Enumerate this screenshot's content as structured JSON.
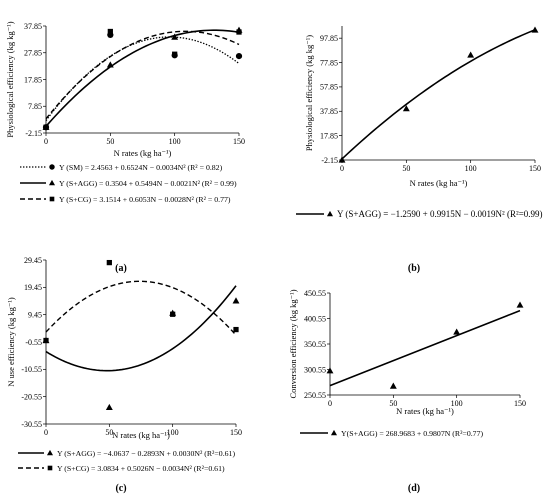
{
  "chart_data": [
    {
      "type": "scatter",
      "panel_label": "(a)",
      "xlabel": "N rates (kg ha⁻¹)",
      "ylabel": "Physiological efficiency (kg kg⁻¹)",
      "xlim": [
        0,
        150
      ],
      "ylim": [
        -2.15,
        37.85
      ],
      "xticks": [
        0,
        50,
        100,
        150
      ],
      "yticks": [
        -2.15,
        7.85,
        17.85,
        27.85,
        37.85
      ],
      "grid": false,
      "legend_position": "bottom",
      "series": [
        {
          "name": "Y (SM)",
          "marker": "circle",
          "line": "dotted",
          "equation": "Y (SM) = 2.4563 + 0.6524N − 0.0034N²  (R² = 0.82)",
          "coef": [
            2.4563,
            0.6524,
            -0.0034
          ],
          "x": [
            0,
            50,
            100,
            150
          ],
          "y": [
            0,
            34.5,
            26.9,
            26.6
          ]
        },
        {
          "name": "Y (S+AGG)",
          "marker": "triangle",
          "line": "solid",
          "equation": "Y (S+AGG) = 0.3504 + 0.5494N − 0.0021N²  (R² = 0.99)",
          "coef": [
            0.3504,
            0.5494,
            -0.0021
          ],
          "x": [
            0,
            50,
            100,
            150
          ],
          "y": [
            0,
            23.3,
            33.7,
            36.3
          ]
        },
        {
          "name": "Y (S+CG)",
          "marker": "square",
          "line": "dashed",
          "equation": "Y (S+CG) = 3.1514 + 0.6053N − 0.0028N²  (R² = 0.77)",
          "coef": [
            3.1514,
            0.6053,
            -0.0028
          ],
          "x": [
            0,
            50,
            100,
            150
          ],
          "y": [
            0,
            35.8,
            27.3,
            35.6
          ]
        }
      ]
    },
    {
      "type": "scatter",
      "panel_label": "(b)",
      "xlabel": "N rates (kg ha⁻¹)",
      "ylabel": "Physiological efficiency (kg kg⁻¹)",
      "xlim": [
        0,
        150
      ],
      "ylim": [
        -2.15,
        107.85
      ],
      "xticks": [
        0,
        50,
        100,
        150
      ],
      "yticks": [
        -2.15,
        17.85,
        37.85,
        57.85,
        77.85,
        97.85
      ],
      "grid": false,
      "legend_position": "bottom",
      "series": [
        {
          "name": "Y (S+AGG)",
          "marker": "triangle",
          "line": "solid",
          "equation": "Y (S+AGG) = −1.2590 + 0.9915N − 0.0019N² (R²=0.99)",
          "coef": [
            -1.259,
            0.9915,
            -0.0019
          ],
          "x": [
            0,
            50,
            100,
            150
          ],
          "y": [
            -2.15,
            40.0,
            84.0,
            104.5
          ]
        }
      ]
    },
    {
      "type": "scatter",
      "panel_label": "(c)",
      "xlabel": "N rates (kg ha⁻¹)",
      "ylabel": "N use efficiency (kg kg⁻¹)",
      "xlim": [
        0,
        150
      ],
      "ylim": [
        -30.55,
        29.45
      ],
      "xticks": [
        0,
        50,
        100,
        150
      ],
      "yticks": [
        -30.55,
        -20.55,
        -10.55,
        -0.55,
        9.45,
        19.45,
        29.45
      ],
      "grid": false,
      "legend_position": "bottom",
      "series": [
        {
          "name": "Y (S+AGG)",
          "marker": "triangle",
          "line": "solid",
          "equation": "Y (S+AGG) = −4.0637 − 0.2893N + 0.0030N² (R²=0.61)",
          "coef": [
            -4.0637,
            -0.2893,
            0.003
          ],
          "x": [
            0,
            50,
            100,
            150
          ],
          "y": [
            0,
            -24.5,
            10.0,
            14.5
          ]
        },
        {
          "name": "Y (S+CG)",
          "marker": "square",
          "line": "dashed",
          "equation": "Y (S+CG) = 3.0834 + 0.5026N − 0.0034N² (R²=0.61)",
          "coef": [
            3.0834,
            0.5026,
            -0.0034
          ],
          "x": [
            0,
            50,
            100,
            150
          ],
          "y": [
            0,
            28.5,
            9.6,
            4.0
          ]
        }
      ]
    },
    {
      "type": "scatter",
      "panel_label": "(d)",
      "xlabel": "N rates (kg ha⁻¹)",
      "ylabel": "Conversion efficiency (kg kg⁻¹)",
      "xlim": [
        0,
        150
      ],
      "ylim": [
        250.55,
        450.55
      ],
      "xticks": [
        0,
        50,
        100,
        150
      ],
      "yticks": [
        250.55,
        300.55,
        350.55,
        400.55,
        450.55
      ],
      "grid": false,
      "legend_position": "bottom",
      "series": [
        {
          "name": "Y(S+AGG)",
          "marker": "triangle",
          "line": "solid",
          "equation": "Y(S+AGG) = 268.9683 + 0.9807N (R²=0.77)",
          "coef": [
            268.9683,
            0.9807,
            0
          ],
          "x": [
            0,
            50,
            100,
            150
          ],
          "y": [
            298.0,
            268.0,
            374.0,
            427.0
          ]
        }
      ]
    }
  ]
}
